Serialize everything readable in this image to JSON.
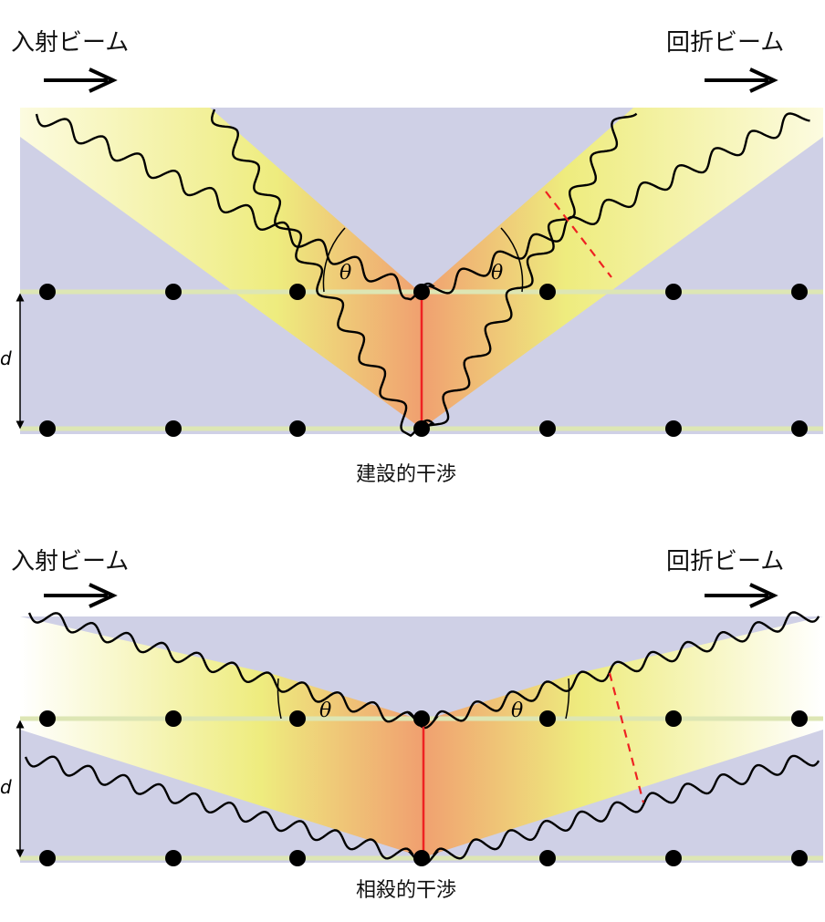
{
  "panels": [
    {
      "incident_label": "入射ビーム",
      "diffracted_label": "回折ビーム",
      "caption": "建設的干渉",
      "theta": "θ",
      "d": "d"
    },
    {
      "incident_label": "入射ビーム",
      "diffracted_label": "回折ビーム",
      "caption": "相殺的干渉",
      "theta": "θ",
      "d": "d"
    }
  ],
  "colors": {
    "crystal": "#cfd0e6",
    "plane": "#dde6b4",
    "beam_light": "#f0ee8a",
    "beam_hot": "#f0a878",
    "path": "#ee2222",
    "atom": "#000000"
  }
}
